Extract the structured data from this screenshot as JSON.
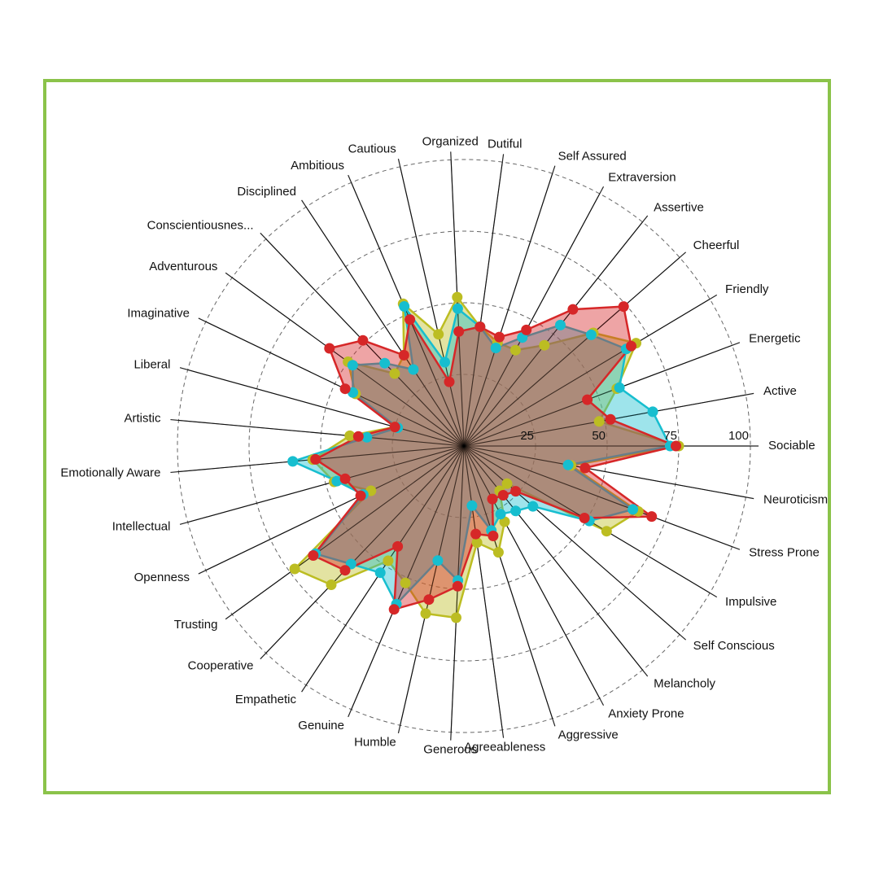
{
  "chart_data": {
    "type": "radar",
    "title": "",
    "rlim": [
      0,
      100
    ],
    "ticks": [
      "25",
      "50",
      "75",
      "100"
    ],
    "tick_values": [
      25,
      50,
      75,
      100
    ],
    "categories": [
      "Sociable",
      "Active",
      "Energetic",
      "Friendly",
      "Cheerful",
      "Assertive",
      "Extraversion",
      "Self Assured",
      "Dutiful",
      "Organized",
      "Cautious",
      "Ambitious",
      "Disciplined",
      "Conscientiousnes...",
      "Adventurous",
      "Imaginative",
      "Liberal",
      "Artistic",
      "Emotionally Aware",
      "Intellectual",
      "Openness",
      "Trusting",
      "Cooperative",
      "Empathetic",
      "Genuine",
      "Humble",
      "Generous",
      "Agreeableness",
      "Aggressive",
      "Anxiety Prone",
      "Melancholy",
      "Self Conscious",
      "Impulsive",
      "Stress Prone",
      "Neuroticism"
    ],
    "series": [
      {
        "color": "#bcbd22",
        "values": [
          75,
          48,
          57,
          70,
          60,
          45,
          38,
          38,
          42,
          52,
          40,
          54,
          38,
          35,
          50,
          42,
          25,
          40,
          53,
          47,
          36,
          73,
          67,
          48,
          52,
          60,
          60,
          34,
          39,
          30,
          20,
          20,
          58,
          65,
          38
        ]
      },
      {
        "color": "#17becf",
        "values": [
          72,
          67,
          58,
          66,
          59,
          54,
          43,
          36,
          42,
          48,
          30,
          53,
          32,
          40,
          48,
          43,
          24,
          34,
          60,
          46,
          39,
          64,
          57,
          53,
          60,
          41,
          47,
          21,
          31,
          27,
          29,
          32,
          51,
          63,
          37
        ]
      },
      {
        "color": "#d62728",
        "values": [
          74,
          52,
          46,
          68,
          74,
          61,
          46,
          40,
          42,
          40,
          23,
          48,
          38,
          51,
          58,
          46,
          25,
          37,
          52,
          43,
          40,
          65,
          60,
          42,
          62,
          55,
          49,
          31,
          33,
          21,
          22,
          24,
          49,
          70,
          43
        ]
      }
    ],
    "legend": "none",
    "grid": true
  }
}
